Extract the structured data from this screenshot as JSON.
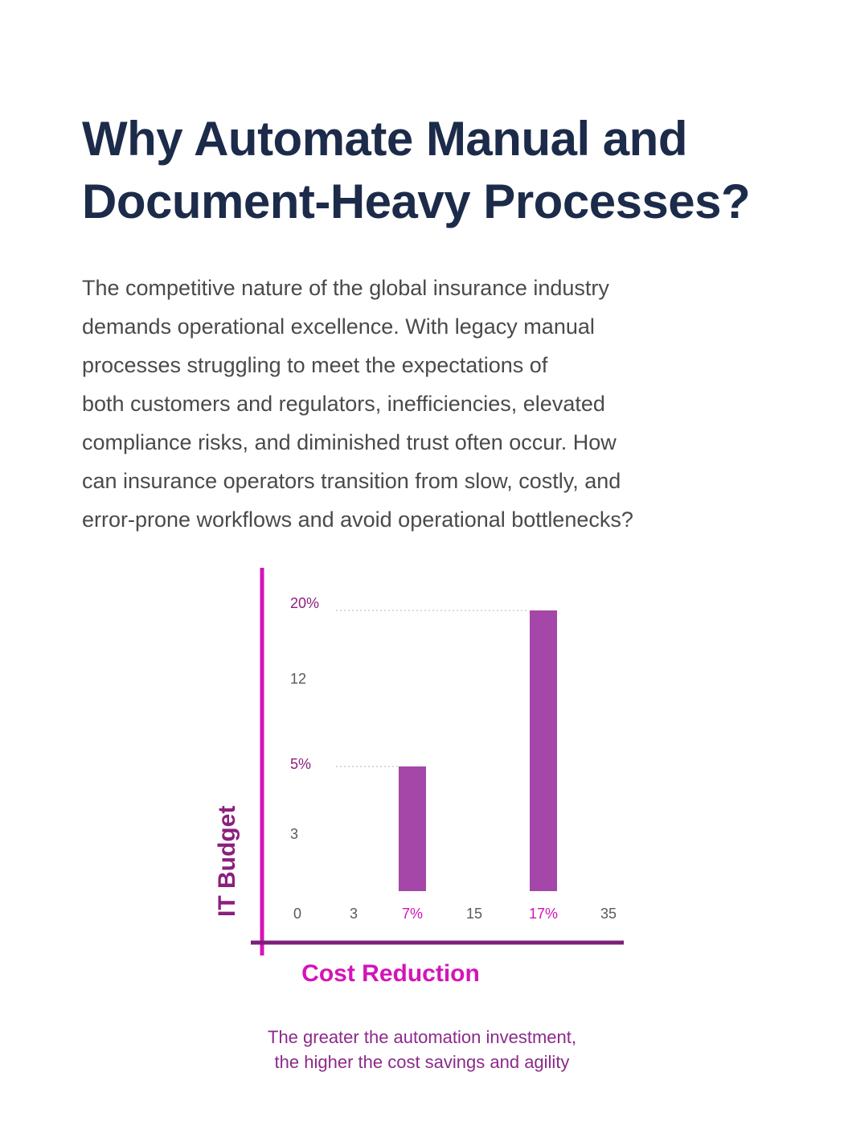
{
  "heading": {
    "lines": [
      "Why Automate Manual and",
      "Document-Heavy Processes?"
    ]
  },
  "intro": {
    "lines": [
      "The competitive nature of the global insurance industry",
      "demands operational excellence. With legacy manual",
      "processes struggling to meet the expectations of",
      "both customers and regulators, inefficiencies, elevated",
      "compliance risks, and diminished trust often occur. How",
      "can insurance operators transition from slow, costly, and",
      "error-prone workflows and avoid operational bottlenecks?"
    ]
  },
  "caption": {
    "lines": [
      "The greater the automation investment,",
      "the higher the cost savings and agility"
    ]
  },
  "colors": {
    "title": "#1c2b4a",
    "bar": "#a447a8",
    "y_axis": "#d414b8",
    "x_axis": "#7b1f7b",
    "highlight_label": "#d414b8",
    "y_label": "#8b1f7d",
    "x_label": "#d414b8",
    "tick": "#5a5a5a"
  },
  "chart_data": {
    "type": "bar",
    "xlabel": "Cost Reduction",
    "ylabel": "IT Budget",
    "x_ticks": [
      "0",
      "3",
      "7%",
      "15",
      "17%",
      "35"
    ],
    "x_highlight": [
      "7%",
      "17%"
    ],
    "y_ticks": [
      "3",
      "5%",
      "12",
      "20%"
    ],
    "y_highlight": [
      "5%",
      "20%"
    ],
    "bars": [
      {
        "x": "7%",
        "value": 5,
        "label": "5%"
      },
      {
        "x": "17%",
        "value": 20,
        "label": "20%"
      }
    ],
    "guides": [
      "5%",
      "20%"
    ]
  }
}
